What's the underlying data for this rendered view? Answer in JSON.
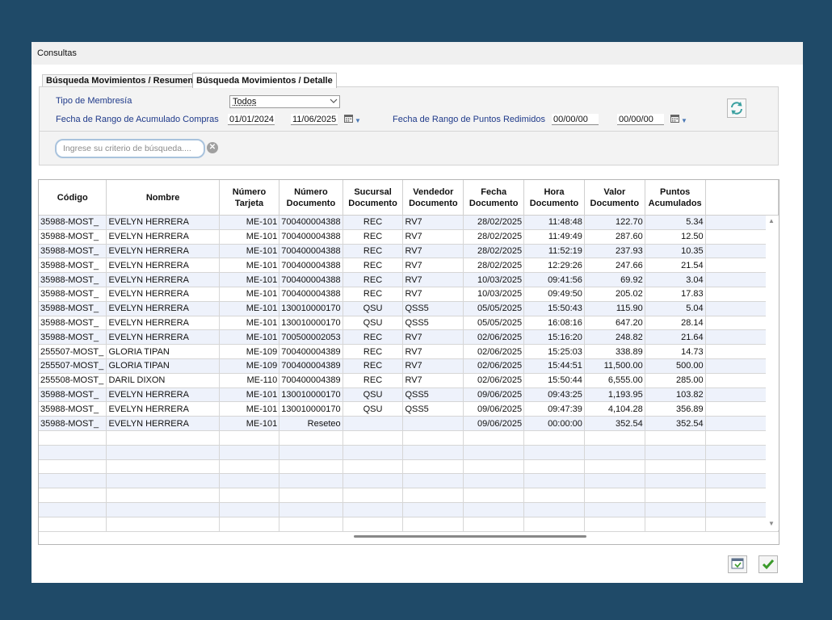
{
  "window": {
    "title": "Consultas"
  },
  "tabs": [
    {
      "label": "Búsqueda Movimientos / Resumen"
    },
    {
      "label": "Búsqueda Movimientos / Detalle"
    }
  ],
  "filters": {
    "membership_label": "Tipo de Membresía",
    "membership_value": "Todos",
    "accum_range_label": "Fecha de Rango de Acumulado Compras",
    "accum_from": "01/01/2024",
    "accum_to": "11/06/2025",
    "redeem_range_label": "Fecha de Rango de Puntos Redimidos",
    "redeem_from": "00/00/00",
    "redeem_to": "00/00/00",
    "search_placeholder": "Ingrese su criterio de búsqueda...."
  },
  "table": {
    "headers": [
      "Código",
      "Nombre",
      "Número\nTarjeta",
      "Número\nDocumento",
      "Sucursal\nDocumento",
      "Vendedor\nDocumento",
      "Fecha\nDocumento",
      "Hora\nDocumento",
      "Valor\nDocumento",
      "Puntos\nAcumulados"
    ],
    "rows": [
      [
        "35988-MOST_",
        "EVELYN HERRERA",
        "ME-101",
        "700400004388",
        "REC",
        "RV7",
        "28/02/2025",
        "11:48:48",
        "122.70",
        "5.34"
      ],
      [
        "35988-MOST_",
        "EVELYN HERRERA",
        "ME-101",
        "700400004388",
        "REC",
        "RV7",
        "28/02/2025",
        "11:49:49",
        "287.60",
        "12.50"
      ],
      [
        "35988-MOST_",
        "EVELYN HERRERA",
        "ME-101",
        "700400004388",
        "REC",
        "RV7",
        "28/02/2025",
        "11:52:19",
        "237.93",
        "10.35"
      ],
      [
        "35988-MOST_",
        "EVELYN HERRERA",
        "ME-101",
        "700400004388",
        "REC",
        "RV7",
        "28/02/2025",
        "12:29:26",
        "247.66",
        "21.54"
      ],
      [
        "35988-MOST_",
        "EVELYN HERRERA",
        "ME-101",
        "700400004388",
        "REC",
        "RV7",
        "10/03/2025",
        "09:41:56",
        "69.92",
        "3.04"
      ],
      [
        "35988-MOST_",
        "EVELYN HERRERA",
        "ME-101",
        "700400004388",
        "REC",
        "RV7",
        "10/03/2025",
        "09:49:50",
        "205.02",
        "17.83"
      ],
      [
        "35988-MOST_",
        "EVELYN HERRERA",
        "ME-101",
        "130010000170",
        "QSU",
        "QSS5",
        "05/05/2025",
        "15:50:43",
        "115.90",
        "5.04"
      ],
      [
        "35988-MOST_",
        "EVELYN HERRERA",
        "ME-101",
        "130010000170",
        "QSU",
        "QSS5",
        "05/05/2025",
        "16:08:16",
        "647.20",
        "28.14"
      ],
      [
        "35988-MOST_",
        "EVELYN HERRERA",
        "ME-101",
        "700500002053",
        "REC",
        "RV7",
        "02/06/2025",
        "15:16:20",
        "248.82",
        "21.64"
      ],
      [
        "255507-MOST_",
        "GLORIA TIPAN",
        "ME-109",
        "700400004389",
        "REC",
        "RV7",
        "02/06/2025",
        "15:25:03",
        "338.89",
        "14.73"
      ],
      [
        "255507-MOST_",
        "GLORIA TIPAN",
        "ME-109",
        "700400004389",
        "REC",
        "RV7",
        "02/06/2025",
        "15:44:51",
        "11,500.00",
        "500.00"
      ],
      [
        "255508-MOST_",
        "DARIL DIXON",
        "ME-110",
        "700400004389",
        "REC",
        "RV7",
        "02/06/2025",
        "15:50:44",
        "6,555.00",
        "285.00"
      ],
      [
        "35988-MOST_",
        "EVELYN HERRERA",
        "ME-101",
        "130010000170",
        "QSU",
        "QSS5",
        "09/06/2025",
        "09:43:25",
        "1,193.95",
        "103.82"
      ],
      [
        "35988-MOST_",
        "EVELYN HERRERA",
        "ME-101",
        "130010000170",
        "QSU",
        "QSS5",
        "09/06/2025",
        "09:47:39",
        "4,104.28",
        "356.89"
      ],
      [
        "35988-MOST_",
        "EVELYN HERRERA",
        "ME-101",
        "Reseteo",
        "",
        "",
        "09/06/2025",
        "00:00:00",
        "352.54",
        "352.54"
      ]
    ],
    "empty_rows": 7
  },
  "icons": {
    "refresh": "refresh-icon",
    "calendar": "calendar-icon",
    "export": "export-icon",
    "accept": "checkmark-icon",
    "clear": "clear-search-icon"
  },
  "colors": {
    "background": "#1f4a68",
    "label_blue": "#1f3a8a",
    "row_alt": "#eef2fb",
    "accept_green": "#3a9a2a"
  }
}
